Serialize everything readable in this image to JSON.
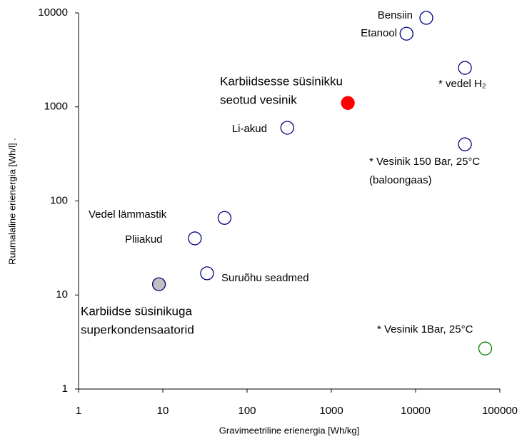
{
  "chart_data": {
    "type": "scatter",
    "x_label": "Gravimeetriline erienergia [Wh/kg]",
    "y_label": "Ruumalaline erienergia [Wh/l] .",
    "xscale": "log",
    "yscale": "log",
    "xlim": [
      1,
      100000
    ],
    "xticks": [
      1,
      10,
      100,
      1000,
      10000,
      100000
    ],
    "ylim": [
      1,
      10000
    ],
    "yticks": [
      1,
      10,
      100,
      1000,
      10000
    ],
    "grid": false,
    "points": [
      {
        "label": [
          "Bensiin"
        ],
        "x": 13400,
        "y": 8850,
        "fill": "#ffffff",
        "stroke": "#000080"
      },
      {
        "label": [
          "Etanool"
        ],
        "x": 7800,
        "y": 6000,
        "fill": "#ffffff",
        "stroke": "#000080"
      },
      {
        "label": [
          "* vedel H₂"
        ],
        "x": 38500,
        "y": 2600,
        "fill": "#ffffff",
        "stroke": "#000080"
      },
      {
        "label": [
          "Karbiidsesse süsinikku",
          "seotud vesinik"
        ],
        "x": 1570,
        "y": 1100,
        "fill": "#ff0000",
        "stroke": "#ff0000"
      },
      {
        "label": [
          "Li-akud"
        ],
        "x": 300,
        "y": 600,
        "fill": "#ffffff",
        "stroke": "#000080"
      },
      {
        "label": [
          "* Vesinik 150 Bar, 25°C",
          "(baloongaas)"
        ],
        "x": 38500,
        "y": 400,
        "fill": "#ffffff",
        "stroke": "#000080"
      },
      {
        "label": [
          "Vedel lämmastik"
        ],
        "x": 54,
        "y": 66,
        "fill": "#ffffff",
        "stroke": "#000080"
      },
      {
        "label": [
          "Pliiakud"
        ],
        "x": 24,
        "y": 40,
        "fill": "#ffffff",
        "stroke": "#000080"
      },
      {
        "label": [
          "Suruõhu seadmed"
        ],
        "x": 33.5,
        "y": 17,
        "fill": "#ffffff",
        "stroke": "#000080"
      },
      {
        "label": [
          "Karbiidse süsinikuga",
          "superkondensaatorid"
        ],
        "x": 9,
        "y": 13,
        "fill": "#c0c0c0",
        "stroke": "#000080"
      },
      {
        "label": [
          "* Vesinik 1Bar, 25°C"
        ],
        "x": 67000,
        "y": 2.7,
        "fill": "#ffffff",
        "stroke": "#008000"
      }
    ]
  }
}
